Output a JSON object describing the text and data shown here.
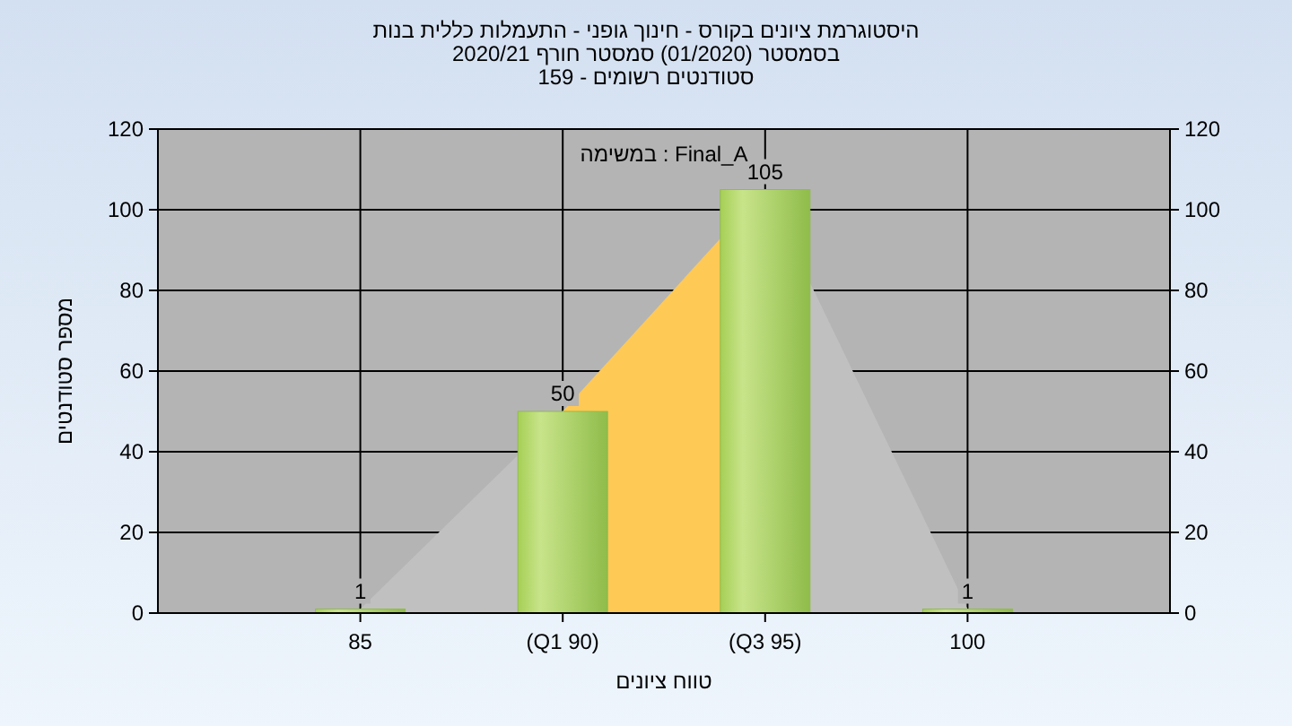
{
  "chart_data": {
    "type": "bar",
    "title": "היסטוגרמת ציונים בקורס - חינוך גופני - התעמלות כללית בנות",
    "subtitle": "בסמסטר (01/2020) סמסטר חורף 2020/21\nסטודנטים רשומים - 159",
    "xlabel": "טווח ציונים",
    "ylabel": "מספר סטודנטים",
    "annotations": [
      "במשימה : Final_A"
    ],
    "categories": [
      "85",
      "(Q1 90)",
      "(Q3 95)",
      "100"
    ],
    "series": [
      {
        "type": "area",
        "color": "#c0c0c0",
        "values": [
          1,
          50,
          105,
          1
        ]
      },
      {
        "type": "area",
        "color": "#ffc955",
        "values": [
          null,
          50,
          105,
          null
        ]
      },
      {
        "color": "#8fbc4a",
        "values": [
          1,
          50,
          105,
          1
        ],
        "value_labels": [
          "1",
          "50",
          "105",
          "1"
        ]
      }
    ],
    "ylim": [
      0,
      120
    ],
    "yticks": [
      0,
      20,
      40,
      60,
      80,
      100,
      120
    ],
    "y2lim": [
      0,
      120
    ],
    "y2ticks": [
      0,
      20,
      40,
      60,
      80,
      100,
      120
    ],
    "grid": true
  }
}
